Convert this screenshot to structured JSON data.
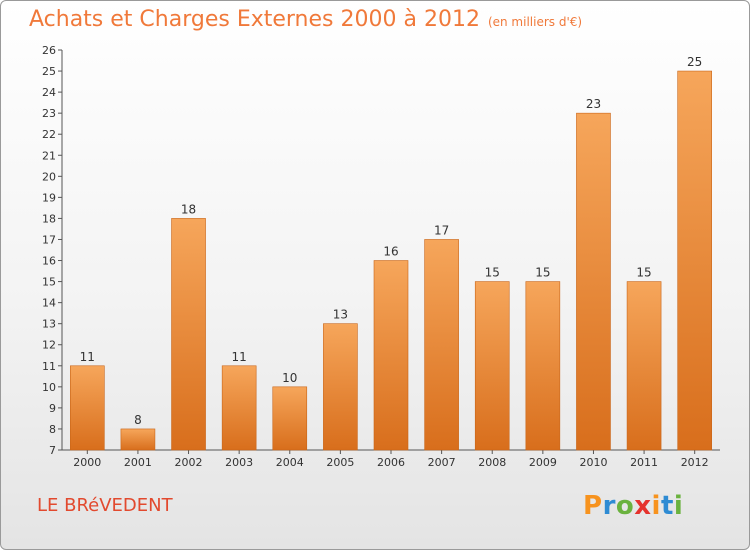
{
  "header": {
    "title": "Achats et Charges Externes 2000 à 2012",
    "unit": "(en milliers d'€)"
  },
  "footer": {
    "commune": "LE BRéVEDENT",
    "logo_letters": [
      "P",
      "r",
      "o",
      "x",
      "i",
      "t",
      "i"
    ],
    "logo_colors": [
      "#f7931e",
      "#2e8bd3",
      "#6ab23e",
      "#e5322d",
      "#f7931e",
      "#2e8bd3",
      "#6ab23e"
    ]
  },
  "chart_data": {
    "type": "bar",
    "categories": [
      "2000",
      "2001",
      "2002",
      "2003",
      "2004",
      "2005",
      "2006",
      "2007",
      "2008",
      "2009",
      "2010",
      "2011",
      "2012"
    ],
    "values": [
      11,
      8,
      18,
      11,
      10,
      13,
      16,
      17,
      15,
      15,
      23,
      15,
      25
    ],
    "ylim": [
      7,
      26
    ],
    "yticks": [
      7,
      8,
      9,
      10,
      11,
      12,
      13,
      14,
      15,
      16,
      17,
      18,
      19,
      20,
      21,
      22,
      23,
      24,
      25,
      26
    ],
    "bar_color": "#f0863a",
    "grid": false
  }
}
